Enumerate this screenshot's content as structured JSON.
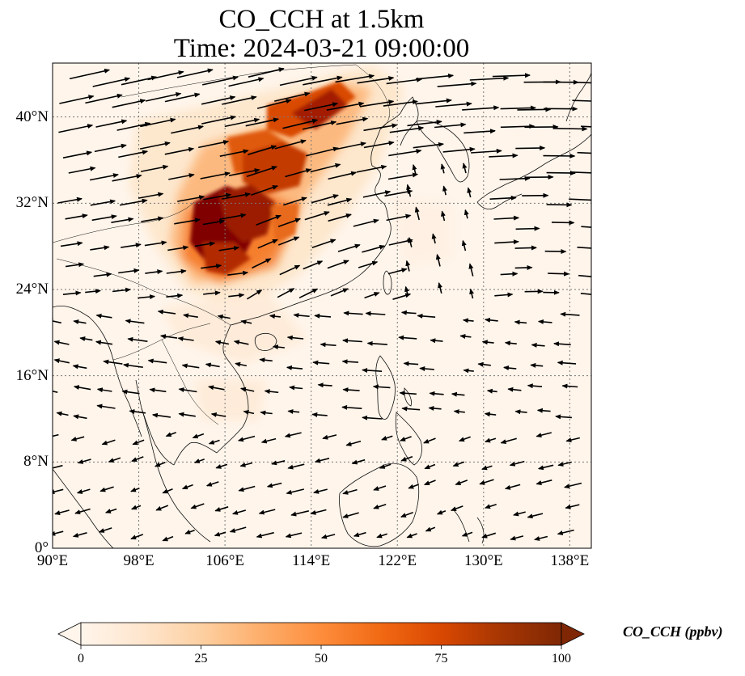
{
  "title": {
    "line1": "CO_CCH at 1.5km",
    "line2": "Time: 2024-03-21 09:00:00"
  },
  "map": {
    "lon_range": [
      90,
      140
    ],
    "lat_range": [
      0,
      45
    ],
    "lat_ticks": [
      {
        "value": 40,
        "label": "40°N"
      },
      {
        "value": 32,
        "label": "32°N"
      },
      {
        "value": 24,
        "label": "24°N"
      },
      {
        "value": 16,
        "label": "16°N"
      },
      {
        "value": 8,
        "label": "8°N"
      },
      {
        "value": 0,
        "label": "0°"
      }
    ],
    "lon_ticks": [
      {
        "value": 90,
        "label": "90°E"
      },
      {
        "value": 98,
        "label": "98°E"
      },
      {
        "value": 106,
        "label": "106°E"
      },
      {
        "value": 114,
        "label": "114°E"
      },
      {
        "value": 122,
        "label": "122°E"
      },
      {
        "value": 130,
        "label": "130°E"
      },
      {
        "value": 138,
        "label": "138°E"
      }
    ],
    "gridlines": "dotted",
    "background_color": "#fff5eb",
    "plume_color": "#800000"
  },
  "colorbar": {
    "label": "CO_CCH (ppbv)",
    "vmin": 0,
    "vmax": 100,
    "ticks": [
      {
        "value": 0,
        "label": "0"
      },
      {
        "value": 25,
        "label": "25"
      },
      {
        "value": 50,
        "label": "50"
      },
      {
        "value": 75,
        "label": "75"
      },
      {
        "value": 100,
        "label": "100"
      }
    ],
    "colormap": "OrRd",
    "extend": "both",
    "stops": [
      "#fff5eb",
      "#fee6ce",
      "#fdd0a2",
      "#fdae6b",
      "#fd8d3c",
      "#f16913",
      "#d94801",
      "#a63603",
      "#7f2704"
    ]
  }
}
